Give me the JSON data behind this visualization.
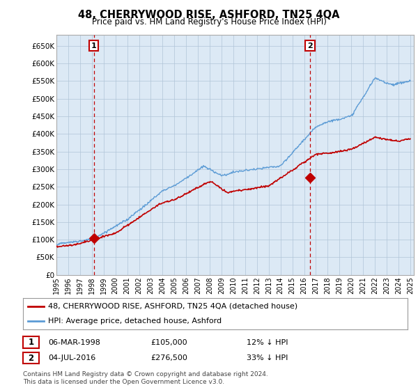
{
  "title": "48, CHERRYWOOD RISE, ASHFORD, TN25 4QA",
  "subtitle": "Price paid vs. HM Land Registry's House Price Index (HPI)",
  "ylabel_ticks": [
    "£0",
    "£50K",
    "£100K",
    "£150K",
    "£200K",
    "£250K",
    "£300K",
    "£350K",
    "£400K",
    "£450K",
    "£500K",
    "£550K",
    "£600K",
    "£650K"
  ],
  "ytick_values": [
    0,
    50000,
    100000,
    150000,
    200000,
    250000,
    300000,
    350000,
    400000,
    450000,
    500000,
    550000,
    600000,
    650000
  ],
  "ylim": [
    0,
    680000
  ],
  "xlim_start": 1995.0,
  "xlim_end": 2025.3,
  "sale1_date": 1998.17,
  "sale1_price": 105000,
  "sale2_date": 2016.5,
  "sale2_price": 276500,
  "legend_line1": "48, CHERRYWOOD RISE, ASHFORD, TN25 4QA (detached house)",
  "legend_line2": "HPI: Average price, detached house, Ashford",
  "table_row1_num": "1",
  "table_row1_date": "06-MAR-1998",
  "table_row1_price": "£105,000",
  "table_row1_hpi": "12% ↓ HPI",
  "table_row2_num": "2",
  "table_row2_date": "04-JUL-2016",
  "table_row2_price": "£276,500",
  "table_row2_hpi": "33% ↓ HPI",
  "footer": "Contains HM Land Registry data © Crown copyright and database right 2024.\nThis data is licensed under the Open Government Licence v3.0.",
  "hpi_color": "#5b9bd5",
  "price_color": "#c00000",
  "dashed_color": "#c00000",
  "plot_bg_color": "#dce9f5",
  "background_color": "#ffffff",
  "grid_color": "#b0c4d8"
}
